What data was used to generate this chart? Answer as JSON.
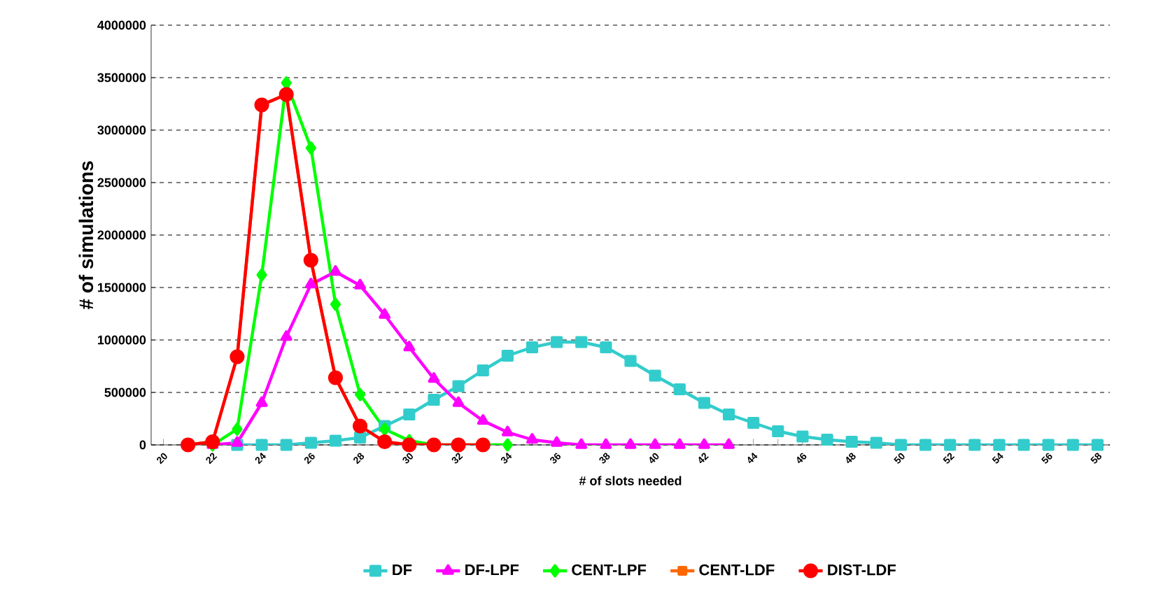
{
  "chart_data": {
    "type": "line",
    "xlabel": "# of slots needed",
    "ylabel": "# of simulations",
    "categories": [
      "20",
      null,
      "22",
      null,
      "24",
      null,
      "26",
      null,
      "28",
      null,
      "30",
      null,
      "32",
      null,
      "34",
      null,
      "36",
      null,
      "38",
      null,
      "40",
      null,
      "42",
      null,
      "44",
      null,
      "46",
      null,
      "48",
      null,
      "50",
      null,
      "52",
      null,
      "54",
      null,
      "56",
      null,
      "58"
    ],
    "series": [
      {
        "name": "DF",
        "color": "#33cccc",
        "marker": "square",
        "values": [
          null,
          null,
          null,
          0,
          0,
          0,
          20000,
          40000,
          70000,
          180000,
          290000,
          430000,
          560000,
          710000,
          850000,
          930000,
          980000,
          980000,
          930000,
          800000,
          660000,
          530000,
          400000,
          290000,
          210000,
          130000,
          80000,
          50000,
          30000,
          20000,
          0,
          0,
          0,
          0,
          0,
          0,
          0,
          0,
          0
        ]
      },
      {
        "name": "DF-LPF",
        "color": "#ff00ff",
        "marker": "triangle",
        "values": [
          null,
          null,
          0,
          20000,
          400000,
          1030000,
          1530000,
          1650000,
          1520000,
          1240000,
          930000,
          630000,
          400000,
          230000,
          120000,
          50000,
          20000,
          0,
          0,
          0,
          0,
          0,
          0,
          0,
          null,
          null,
          null,
          null,
          null,
          null,
          null,
          null,
          null,
          null,
          null,
          null,
          null,
          null,
          null
        ]
      },
      {
        "name": "CENT-LPF",
        "color": "#00ff00",
        "marker": "diamond",
        "values": [
          null,
          null,
          0,
          150000,
          1620000,
          3450000,
          2830000,
          1340000,
          480000,
          150000,
          40000,
          0,
          0,
          0,
          0,
          null,
          null,
          null,
          null,
          null,
          null,
          null,
          null,
          null,
          null,
          null,
          null,
          null,
          null,
          null,
          null,
          null,
          null,
          null,
          null,
          null,
          null,
          null,
          null
        ]
      },
      {
        "name": "CENT-LDF",
        "color": "#ff6600",
        "marker": "square",
        "values": [
          null,
          0,
          30000,
          840000,
          3240000,
          3340000,
          1760000,
          640000,
          180000,
          30000,
          0,
          0,
          null,
          null,
          null,
          null,
          null,
          null,
          null,
          null,
          null,
          null,
          null,
          null,
          null,
          null,
          null,
          null,
          null,
          null,
          null,
          null,
          null,
          null,
          null,
          null,
          null,
          null,
          null
        ]
      },
      {
        "name": "DIST-LDF",
        "color": "#ff0000",
        "marker": "circle",
        "values": [
          null,
          0,
          30000,
          840000,
          3240000,
          3340000,
          1760000,
          640000,
          180000,
          30000,
          0,
          0,
          0,
          0,
          null,
          null,
          null,
          null,
          null,
          null,
          null,
          null,
          null,
          null,
          null,
          null,
          null,
          null,
          null,
          null,
          null,
          null,
          null,
          null,
          null,
          null,
          null,
          null,
          null
        ]
      }
    ],
    "ylim": [
      0,
      4000000
    ],
    "yticks": [
      0,
      500000,
      1000000,
      1500000,
      2000000,
      2500000,
      3000000,
      3500000,
      4000000
    ],
    "grid": "y",
    "legend": "bottom",
    "line_style": "solid"
  }
}
